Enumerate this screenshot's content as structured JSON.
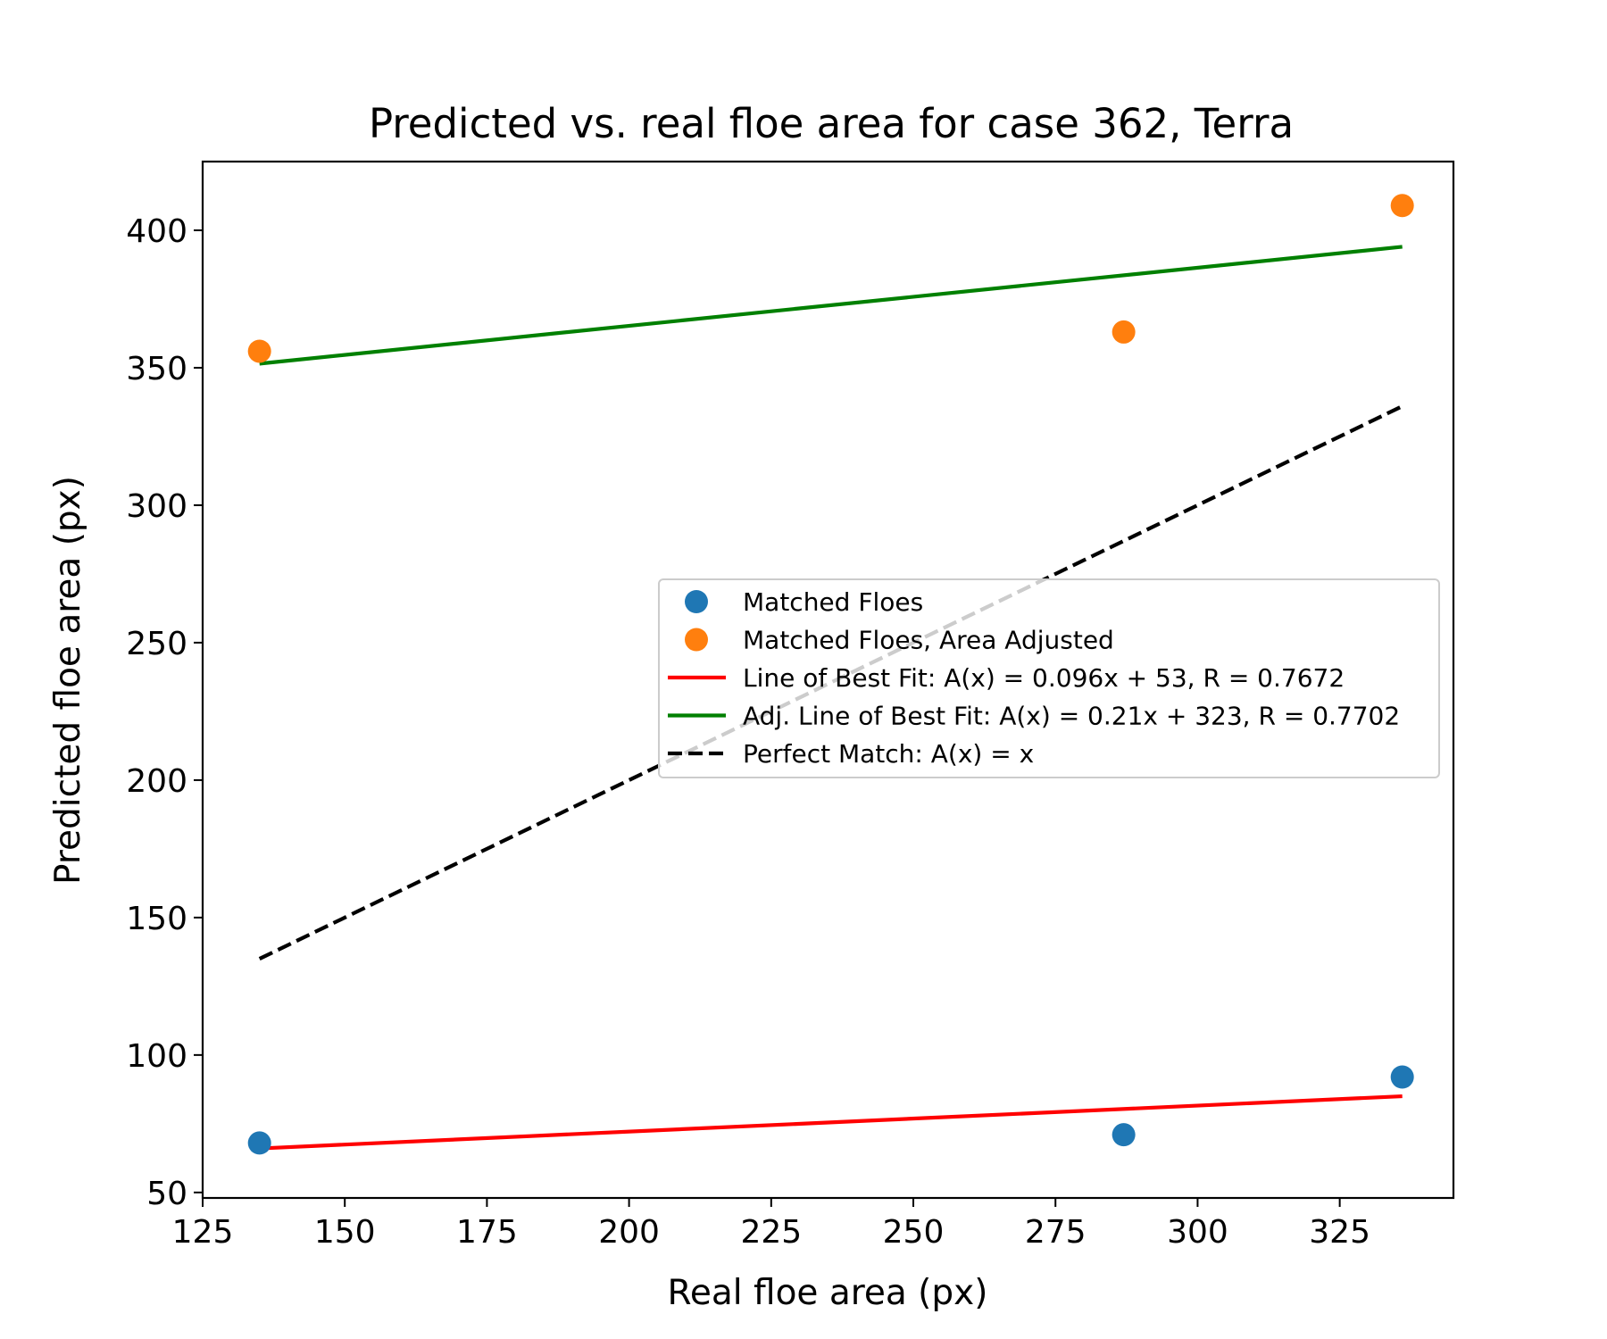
{
  "chart_data": {
    "type": "scatter",
    "title": "Predicted vs. real floe area  for case 362, Terra",
    "xlabel": "Real floe area (px)",
    "ylabel": "Predicted floe area (px)",
    "xlim": [
      125,
      345
    ],
    "ylim": [
      48,
      425
    ],
    "xticks": [
      125,
      150,
      175,
      200,
      225,
      250,
      275,
      300,
      325
    ],
    "yticks": [
      50,
      100,
      150,
      200,
      250,
      300,
      350,
      400
    ],
    "grid": false,
    "legend_position": "center-right",
    "scatter_series": [
      {
        "name": "Matched Floes",
        "color": "#1f77b4",
        "points": [
          [
            135,
            68
          ],
          [
            287,
            71
          ],
          [
            336,
            92
          ]
        ]
      },
      {
        "name": "Matched Floes, Area Adjusted",
        "color": "#ff7f0e",
        "points": [
          [
            135,
            356
          ],
          [
            287,
            363
          ],
          [
            336,
            409
          ]
        ]
      }
    ],
    "line_series": [
      {
        "name": "Line of Best Fit: A(x) = 0.096x + 53, R = 0.7672",
        "color": "#ff0000",
        "style": "solid",
        "points": [
          [
            135,
            66
          ],
          [
            336,
            85
          ]
        ]
      },
      {
        "name": "Adj. Line of Best Fit: A(x) = 0.21x + 323, R = 0.7702",
        "color": "#008000",
        "style": "solid",
        "points": [
          [
            135,
            351.5
          ],
          [
            336,
            394
          ]
        ]
      },
      {
        "name": "Perfect Match: A(x) = x",
        "color": "#000000",
        "style": "dashed",
        "points": [
          [
            135,
            135
          ],
          [
            336,
            336
          ]
        ]
      }
    ]
  }
}
